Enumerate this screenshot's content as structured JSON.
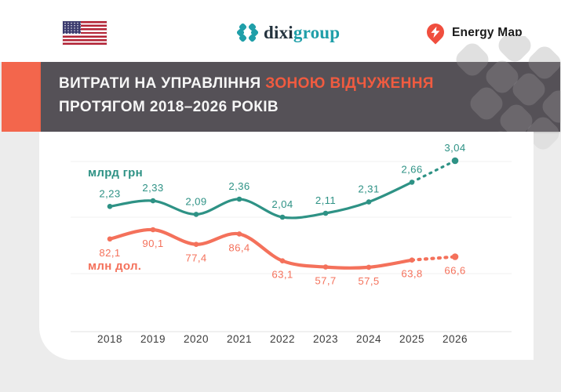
{
  "header": {
    "flag_icon": "us-flag",
    "brand": {
      "icon": "dixigroup-icon",
      "name_dark": "dixi",
      "name_teal": "group"
    },
    "partner": {
      "icon": "energy-map-pin",
      "label": "Energy Map"
    }
  },
  "title": {
    "line1_white": "ВИТРАТИ НА УПРАВЛІННЯ ",
    "line1_orange": "ЗОНОЮ ВІДЧУЖЕННЯ",
    "line2": "ПРОТЯГОМ 2018–2026 РОКІВ"
  },
  "chart_data": {
    "type": "line",
    "title": "Витрати на управління зоною відчуження протягом 2018–2026 років",
    "categories": [
      "2018",
      "2019",
      "2020",
      "2021",
      "2022",
      "2023",
      "2024",
      "2025",
      "2026"
    ],
    "series": [
      {
        "name": "млрд грн",
        "color": "#2E9285",
        "values": [
          2.23,
          2.33,
          2.09,
          2.36,
          2.04,
          2.11,
          2.31,
          2.66,
          3.04
        ],
        "display_values": [
          "2,23",
          "2,33",
          "2,09",
          "2,36",
          "2,04",
          "2,11",
          "2,31",
          "2,66",
          "3,04"
        ],
        "forecast_from_index": 7,
        "forecast_style": "dotted",
        "label_position": "above"
      },
      {
        "name": "млн дол.",
        "color": "#F4715B",
        "values": [
          82.1,
          90.1,
          77.4,
          86.4,
          63.1,
          57.7,
          57.5,
          63.8,
          66.6
        ],
        "display_values": [
          "82,1",
          "90,1",
          "77,4",
          "86,4",
          "63,1",
          "57,7",
          "57,5",
          "63,8",
          "66,6"
        ],
        "forecast_from_index": 7,
        "forecast_style": "dotted",
        "label_position": "below"
      }
    ],
    "xlabel": "",
    "ylabel": "",
    "grid": "horizontal",
    "legend_position": "inline-left"
  },
  "colors": {
    "page_bg": "#ECECEC",
    "header_bg": "#FFFFFF",
    "titlebar_bg": "#555157",
    "accent_bar": "#F3664C",
    "title_highlight": "#F05B40",
    "line_teal": "#2E9285",
    "line_orange": "#F4715B",
    "brand_teal": "#1F9FA9",
    "brand_dark": "#24333E",
    "pin_red": "#F04E3E",
    "axis_text": "#3C3C3C",
    "grid_line": "#F1F1F1"
  }
}
